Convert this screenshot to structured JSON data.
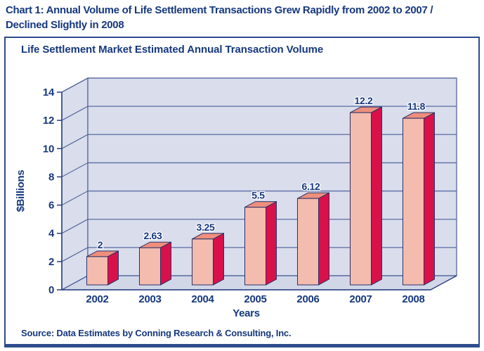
{
  "page": {
    "header_line1": "Chart 1: Annual Volume of Life Settlement Transactions Grew Rapidly from 2002 to 2007 /",
    "header_line2": "Declined Slightly in 2008",
    "source": "Source: Data Estimates by Conning Research & Consulting, Inc."
  },
  "chart_data": {
    "type": "bar",
    "style": "3d-column",
    "title": "Life Settlement Market Estimated Annual Transaction Volume",
    "categories": [
      "2002",
      "2003",
      "2004",
      "2005",
      "2006",
      "2007",
      "2008"
    ],
    "values": [
      2,
      2.63,
      3.25,
      5.5,
      6.12,
      12.2,
      11.8
    ],
    "value_labels": [
      "2",
      "2.63",
      "3.25",
      "5.5",
      "6.12",
      "12.2",
      "11.8"
    ],
    "xlabel": "Years",
    "ylabel": "$Billions",
    "ylim": [
      0,
      14
    ],
    "yticks": [
      0,
      2,
      4,
      6,
      8,
      10,
      12,
      14
    ],
    "grid": true,
    "legend": false,
    "colors": {
      "text": "#16387e",
      "axis": "#2a3f80",
      "bar_outline": "#2a3168",
      "bar_front": "#f3bcae",
      "bar_side": "#d8114b",
      "bar_top": "#ee8f7d",
      "wall_fill": "#d9ddec",
      "floor_fill": "#d2d7e8",
      "wall_stroke": "#4a5d96",
      "grid_line": "#5b6ca3"
    }
  }
}
